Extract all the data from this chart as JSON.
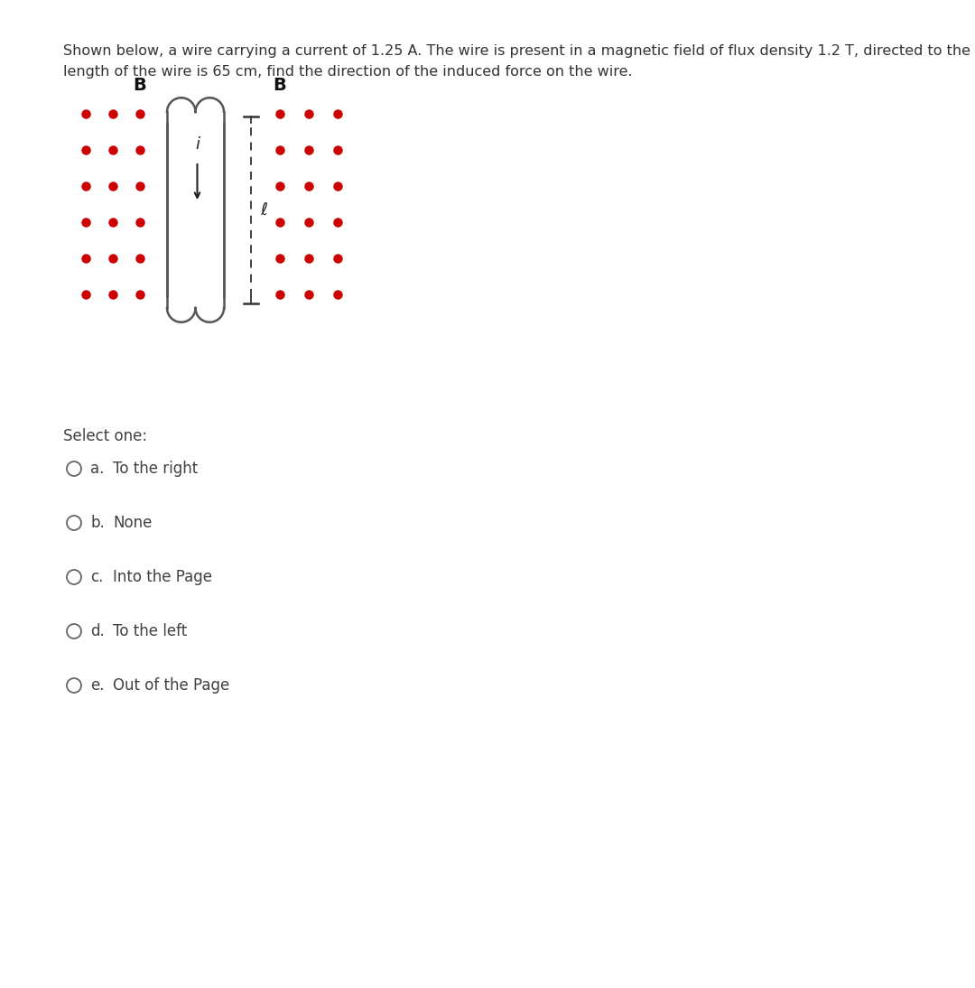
{
  "title_line1": "Shown below, a wire carrying a current of 1.25 A. The wire is present in a magnetic field of flux density 1.2 T, directed to the right. If the",
  "title_line2": "length of the wire is 65 cm, find the direction of the induced force on the wire.",
  "title_fontsize": 11.5,
  "bg_color": "#ffffff",
  "dot_color": "#cc0000",
  "text_color": "#404040",
  "dark_color": "#222222",
  "font_size_options": 12,
  "select_one_text": "Select one:",
  "options": [
    {
      "letter": "a.",
      "text": "To the right"
    },
    {
      "letter": "b.",
      "text": "None"
    },
    {
      "letter": "c.",
      "text": "Into the Page"
    },
    {
      "letter": "d.",
      "text": "To the left"
    },
    {
      "letter": "e.",
      "text": "Out of the Page"
    }
  ]
}
